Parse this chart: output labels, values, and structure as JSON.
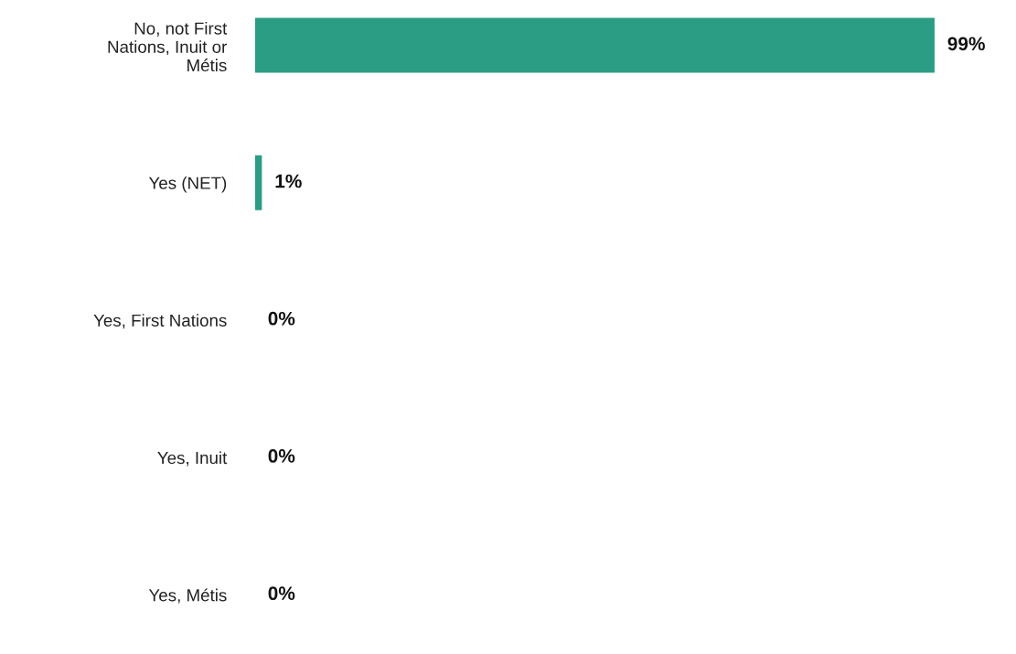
{
  "chart_data": {
    "type": "bar",
    "orientation": "horizontal",
    "categories": [
      "No, not First\nNations, Inuit or\nMétis",
      "Yes (NET)",
      "Yes, First Nations",
      "Yes, Inuit",
      "Yes, Métis"
    ],
    "values": [
      99,
      1,
      0,
      0,
      0
    ],
    "value_labels": [
      "99%",
      "1%",
      "0%",
      "0%",
      "0%"
    ],
    "color": "#2a9d84",
    "tick_labels": "y",
    "grid": false,
    "legend": false
  }
}
